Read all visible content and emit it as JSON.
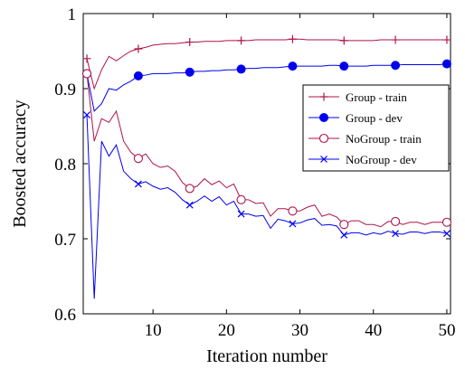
{
  "chart_data": {
    "type": "line",
    "xlabel": "Iteration number",
    "ylabel": "Boosted accuracy",
    "xlim": [
      0.5,
      50.5
    ],
    "ylim": [
      0.6,
      1.0
    ],
    "xticks": [
      10,
      20,
      30,
      40,
      50
    ],
    "yticks": [
      0.6,
      0.7,
      0.8,
      0.9,
      1.0
    ],
    "xtick_labels": [
      "10",
      "20",
      "30",
      "40",
      "50"
    ],
    "ytick_labels": [
      "0.6",
      "0.7",
      "0.8",
      "0.9",
      "1"
    ],
    "grid": false,
    "legend_position": "right",
    "x": [
      1,
      2,
      3,
      4,
      5,
      6,
      7,
      8,
      9,
      10,
      11,
      12,
      13,
      14,
      15,
      16,
      17,
      18,
      19,
      20,
      21,
      22,
      23,
      24,
      25,
      26,
      27,
      28,
      29,
      30,
      31,
      32,
      33,
      34,
      35,
      36,
      37,
      38,
      39,
      40,
      41,
      42,
      43,
      44,
      45,
      46,
      47,
      48,
      49,
      50
    ],
    "series": [
      {
        "name": "Group - train",
        "color": "#b0124a",
        "marker": "plus",
        "marker_every": 7,
        "values": [
          0.94,
          0.9,
          0.925,
          0.943,
          0.937,
          0.944,
          0.95,
          0.953,
          0.955,
          0.958,
          0.959,
          0.96,
          0.96,
          0.961,
          0.962,
          0.962,
          0.963,
          0.963,
          0.963,
          0.964,
          0.964,
          0.964,
          0.964,
          0.965,
          0.965,
          0.965,
          0.965,
          0.965,
          0.966,
          0.966,
          0.965,
          0.965,
          0.965,
          0.965,
          0.965,
          0.964,
          0.964,
          0.964,
          0.964,
          0.964,
          0.965,
          0.965,
          0.965,
          0.965,
          0.965,
          0.965,
          0.965,
          0.965,
          0.965,
          0.965
        ]
      },
      {
        "name": "Group - dev",
        "color": "#0000ee",
        "marker": "circle-filled",
        "marker_every": 7,
        "values": [
          0.92,
          0.87,
          0.88,
          0.9,
          0.898,
          0.905,
          0.91,
          0.917,
          0.918,
          0.92,
          0.92,
          0.92,
          0.921,
          0.921,
          0.922,
          0.923,
          0.923,
          0.924,
          0.924,
          0.925,
          0.925,
          0.926,
          0.927,
          0.927,
          0.928,
          0.928,
          0.928,
          0.929,
          0.93,
          0.93,
          0.93,
          0.93,
          0.93,
          0.931,
          0.931,
          0.93,
          0.93,
          0.93,
          0.93,
          0.931,
          0.931,
          0.931,
          0.931,
          0.932,
          0.932,
          0.932,
          0.932,
          0.932,
          0.932,
          0.933
        ]
      },
      {
        "name": "NoGroup - train",
        "color": "#b0124a",
        "marker": "circle-open",
        "marker_every": 7,
        "values": [
          0.92,
          0.83,
          0.86,
          0.855,
          0.87,
          0.83,
          0.815,
          0.807,
          0.813,
          0.8,
          0.795,
          0.797,
          0.79,
          0.775,
          0.767,
          0.77,
          0.78,
          0.772,
          0.777,
          0.768,
          0.773,
          0.752,
          0.752,
          0.747,
          0.748,
          0.73,
          0.74,
          0.74,
          0.737,
          0.737,
          0.742,
          0.745,
          0.73,
          0.733,
          0.729,
          0.719,
          0.724,
          0.724,
          0.719,
          0.719,
          0.716,
          0.723,
          0.723,
          0.719,
          0.722,
          0.722,
          0.719,
          0.722,
          0.722,
          0.722
        ]
      },
      {
        "name": "NoGroup - dev",
        "color": "#0000ee",
        "marker": "cross",
        "marker_every": 7,
        "values": [
          0.865,
          0.62,
          0.83,
          0.81,
          0.825,
          0.79,
          0.78,
          0.773,
          0.776,
          0.77,
          0.766,
          0.768,
          0.762,
          0.752,
          0.745,
          0.75,
          0.757,
          0.75,
          0.756,
          0.745,
          0.75,
          0.733,
          0.733,
          0.73,
          0.731,
          0.714,
          0.726,
          0.724,
          0.72,
          0.721,
          0.725,
          0.727,
          0.718,
          0.719,
          0.717,
          0.705,
          0.708,
          0.708,
          0.705,
          0.708,
          0.706,
          0.71,
          0.707,
          0.706,
          0.709,
          0.709,
          0.707,
          0.709,
          0.709,
          0.707
        ]
      }
    ]
  }
}
